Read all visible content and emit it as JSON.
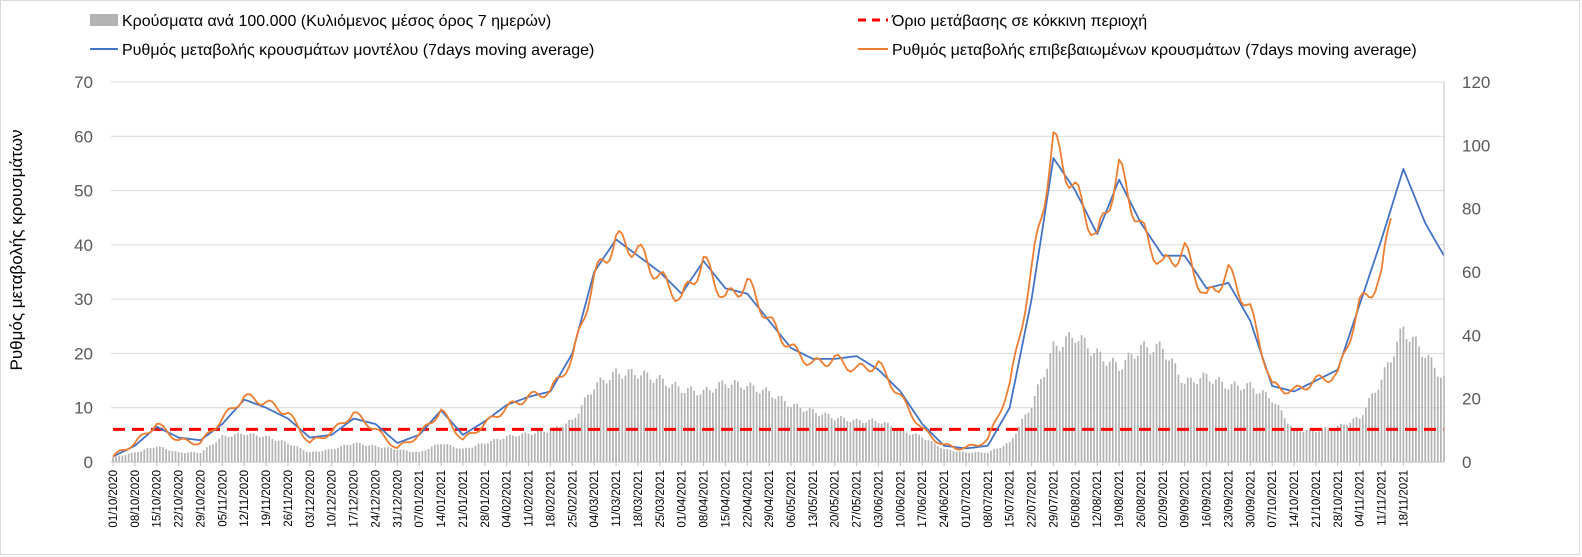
{
  "chart_data": {
    "type": "line+bar",
    "title": "",
    "ylabel": "Ρυθμός μεταβολής κρουσμάτων",
    "ylabel_right": "",
    "ylim": [
      0,
      70
    ],
    "ylim_right": [
      0,
      120
    ],
    "yticks": [
      0,
      10,
      20,
      30,
      40,
      50,
      60,
      70
    ],
    "yticks_right": [
      0,
      20,
      40,
      60,
      80,
      100,
      120
    ],
    "x_start": "2020-10-01",
    "x_end": "2021-11-26",
    "x_tick_labels": [
      "01/10/2020",
      "08/10/2020",
      "15/10/2020",
      "22/10/2020",
      "29/10/2020",
      "05/11/2020",
      "12/11/2020",
      "19/11/2020",
      "26/11/2020",
      "03/12/2020",
      "10/12/2020",
      "17/12/2020",
      "24/12/2020",
      "31/12/2020",
      "07/01/2021",
      "14/01/2021",
      "21/01/2021",
      "28/01/2021",
      "04/02/2021",
      "11/02/2021",
      "18/02/2021",
      "25/02/2021",
      "04/03/2021",
      "11/03/2021",
      "18/03/2021",
      "25/03/2021",
      "01/04/2021",
      "08/04/2021",
      "15/04/2021",
      "22/04/2021",
      "29/04/2021",
      "06/05/2021",
      "13/05/2021",
      "20/05/2021",
      "27/05/2021",
      "03/06/2021",
      "10/06/2021",
      "17/06/2021",
      "24/06/2021",
      "01/07/2021",
      "08/07/2021",
      "15/07/2021",
      "22/07/2021",
      "29/07/2021",
      "05/08/2021",
      "12/08/2021",
      "19/08/2021",
      "26/08/2021",
      "02/09/2021",
      "09/09/2021",
      "16/09/2021",
      "23/09/2021",
      "30/09/2021",
      "07/10/2021",
      "14/10/2021",
      "21/10/2021",
      "28/10/2021",
      "04/11/2021",
      "11/11/2021",
      "18/11/2021"
    ],
    "threshold": 6,
    "series": [
      {
        "name": "Κρούσματα ανά 100.000 (Κυλιόμενος μέσος όρος 7 ημερών)",
        "type": "bar",
        "axis": "right",
        "color": "#b3b3b3",
        "points": [
          [
            0,
            1.5
          ],
          [
            7,
            3
          ],
          [
            14,
            5
          ],
          [
            21,
            3
          ],
          [
            28,
            3
          ],
          [
            35,
            8
          ],
          [
            42,
            9
          ],
          [
            49,
            8
          ],
          [
            56,
            6
          ],
          [
            63,
            3
          ],
          [
            70,
            4
          ],
          [
            77,
            6
          ],
          [
            84,
            5
          ],
          [
            91,
            4
          ],
          [
            98,
            3
          ],
          [
            105,
            6
          ],
          [
            112,
            4
          ],
          [
            119,
            6
          ],
          [
            126,
            8
          ],
          [
            133,
            9
          ],
          [
            140,
            10
          ],
          [
            147,
            13
          ],
          [
            154,
            24
          ],
          [
            161,
            28
          ],
          [
            168,
            28
          ],
          [
            175,
            26
          ],
          [
            182,
            23
          ],
          [
            189,
            22
          ],
          [
            196,
            25
          ],
          [
            203,
            24
          ],
          [
            210,
            22
          ],
          [
            217,
            18
          ],
          [
            224,
            16
          ],
          [
            231,
            14
          ],
          [
            238,
            13
          ],
          [
            245,
            13
          ],
          [
            252,
            10
          ],
          [
            259,
            8
          ],
          [
            266,
            4
          ],
          [
            273,
            3
          ],
          [
            280,
            3
          ],
          [
            287,
            6
          ],
          [
            294,
            18
          ],
          [
            301,
            36
          ],
          [
            308,
            40
          ],
          [
            315,
            34
          ],
          [
            322,
            30
          ],
          [
            329,
            36
          ],
          [
            336,
            36
          ],
          [
            343,
            25
          ],
          [
            350,
            27
          ],
          [
            357,
            24
          ],
          [
            364,
            24
          ],
          [
            371,
            20
          ],
          [
            378,
            10
          ],
          [
            385,
            10
          ],
          [
            392,
            11
          ],
          [
            399,
            14
          ],
          [
            406,
            26
          ],
          [
            413,
            42
          ],
          [
            420,
            34
          ],
          [
            426,
            26
          ]
        ]
      },
      {
        "name": "Όριο μετάβασης σε κόκκινη περιοχή",
        "type": "line",
        "axis": "left",
        "color": "#ff0000",
        "style": "dashed"
      },
      {
        "name": "Ρυθμός μεταβολής κρουσμάτων μοντέλου (7days moving average)",
        "type": "line",
        "axis": "left",
        "color": "#4472c4",
        "points": [
          [
            0,
            1
          ],
          [
            7,
            3
          ],
          [
            14,
            6.5
          ],
          [
            21,
            4.5
          ],
          [
            28,
            4
          ],
          [
            35,
            7
          ],
          [
            42,
            11.5
          ],
          [
            49,
            10
          ],
          [
            56,
            8
          ],
          [
            63,
            4.5
          ],
          [
            70,
            5
          ],
          [
            77,
            8
          ],
          [
            84,
            7
          ],
          [
            91,
            3.5
          ],
          [
            98,
            5
          ],
          [
            105,
            9.5
          ],
          [
            112,
            5
          ],
          [
            119,
            7.5
          ],
          [
            126,
            10.5
          ],
          [
            133,
            12
          ],
          [
            140,
            13
          ],
          [
            147,
            20
          ],
          [
            154,
            35
          ],
          [
            161,
            41
          ],
          [
            168,
            38
          ],
          [
            175,
            35
          ],
          [
            182,
            31
          ],
          [
            189,
            37
          ],
          [
            196,
            32
          ],
          [
            203,
            31
          ],
          [
            210,
            26
          ],
          [
            217,
            21
          ],
          [
            224,
            19
          ],
          [
            231,
            19
          ],
          [
            238,
            19.5
          ],
          [
            245,
            17
          ],
          [
            252,
            13
          ],
          [
            259,
            7
          ],
          [
            266,
            3
          ],
          [
            273,
            2.5
          ],
          [
            280,
            3
          ],
          [
            287,
            10
          ],
          [
            294,
            30
          ],
          [
            301,
            56
          ],
          [
            308,
            50
          ],
          [
            315,
            42
          ],
          [
            322,
            52
          ],
          [
            329,
            44
          ],
          [
            336,
            38
          ],
          [
            343,
            38
          ],
          [
            350,
            32
          ],
          [
            357,
            33
          ],
          [
            364,
            26
          ],
          [
            371,
            14
          ],
          [
            378,
            13
          ],
          [
            385,
            15
          ],
          [
            392,
            17
          ],
          [
            399,
            29
          ],
          [
            406,
            41
          ],
          [
            413,
            54
          ],
          [
            420,
            44
          ],
          [
            426,
            38
          ]
        ]
      },
      {
        "name": "Ρυθμός μεταβολής επιβεβαιωμένων κρουσμάτων (7days moving average)",
        "type": "line",
        "axis": "left",
        "color": "#ed7d31",
        "points": [
          [
            0,
            1
          ],
          [
            7,
            3.5
          ],
          [
            14,
            7
          ],
          [
            21,
            4
          ],
          [
            28,
            3.5
          ],
          [
            35,
            8
          ],
          [
            42,
            12
          ],
          [
            49,
            11
          ],
          [
            56,
            9
          ],
          [
            63,
            3.5
          ],
          [
            70,
            5.5
          ],
          [
            77,
            9
          ],
          [
            84,
            6
          ],
          [
            91,
            2.5
          ],
          [
            98,
            5
          ],
          [
            105,
            9.5
          ],
          [
            112,
            4
          ],
          [
            119,
            7
          ],
          [
            126,
            10
          ],
          [
            133,
            12
          ],
          [
            140,
            13
          ],
          [
            147,
            19
          ],
          [
            154,
            34
          ],
          [
            161,
            41
          ],
          [
            168,
            39
          ],
          [
            175,
            34
          ],
          [
            182,
            30
          ],
          [
            189,
            37
          ],
          [
            196,
            30
          ],
          [
            203,
            33
          ],
          [
            210,
            26
          ],
          [
            217,
            21
          ],
          [
            224,
            18
          ],
          [
            231,
            19
          ],
          [
            238,
            17
          ],
          [
            245,
            18
          ],
          [
            252,
            12
          ],
          [
            259,
            6
          ],
          [
            266,
            3
          ],
          [
            273,
            2.5
          ],
          [
            280,
            4
          ],
          [
            287,
            14
          ],
          [
            294,
            35
          ],
          [
            301,
            59
          ],
          [
            308,
            50
          ],
          [
            315,
            41
          ],
          [
            322,
            54
          ],
          [
            329,
            43
          ],
          [
            336,
            36
          ],
          [
            343,
            39
          ],
          [
            350,
            30
          ],
          [
            357,
            35
          ],
          [
            364,
            28
          ],
          [
            371,
            14
          ],
          [
            378,
            13
          ],
          [
            385,
            15
          ],
          [
            392,
            16
          ],
          [
            399,
            29
          ],
          [
            406,
            34
          ],
          [
            409,
            46
          ]
        ]
      }
    ],
    "legend": [
      "Κρούσματα ανά 100.000 (Κυλιόμενος μέσος όρος 7 ημερών)",
      "Όριο μετάβασης σε κόκκινη περιοχή",
      "Ρυθμός μεταβολής κρουσμάτων μοντέλου (7days moving average)",
      "Ρυθμός μεταβολής επιβεβαιωμένων κρουσμάτων (7days moving average)"
    ],
    "legend_position": "top",
    "grid": true
  }
}
